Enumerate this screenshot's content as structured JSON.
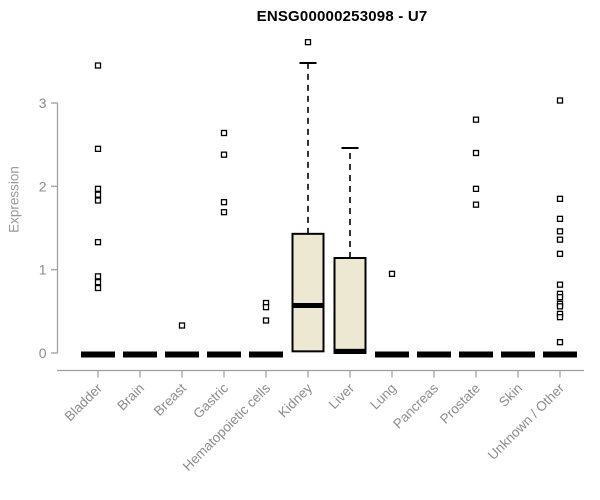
{
  "chart_data": {
    "type": "box",
    "title": "ENSG00000253098 - U7",
    "ylabel": "Expression",
    "xlabel": "",
    "ylim": [
      0,
      3.85
    ],
    "yticks": [
      0,
      1,
      2,
      3
    ],
    "grid": false,
    "legend": null,
    "categories": [
      "Bladder",
      "Brain",
      "Breast",
      "Gastric",
      "Hematopoietic cells",
      "Kidney",
      "Liver",
      "Lung",
      "Pancreas",
      "Prostate",
      "Skin",
      "Unknown / Other"
    ],
    "boxes": [
      {
        "category": "Bladder",
        "q1": 0,
        "median": 0,
        "q3": 0,
        "whisker_low": 0,
        "whisker_high": 0,
        "outliers": [
          3.45,
          2.45,
          1.97,
          1.9,
          1.83,
          1.33,
          0.92,
          0.85,
          0.78
        ]
      },
      {
        "category": "Brain",
        "q1": 0,
        "median": 0,
        "q3": 0,
        "whisker_low": 0,
        "whisker_high": 0,
        "outliers": []
      },
      {
        "category": "Breast",
        "q1": 0,
        "median": 0,
        "q3": 0,
        "whisker_low": 0,
        "whisker_high": 0,
        "outliers": [
          0.33
        ]
      },
      {
        "category": "Gastric",
        "q1": 0,
        "median": 0,
        "q3": 0,
        "whisker_low": 0,
        "whisker_high": 0,
        "outliers": [
          2.64,
          2.38,
          1.81,
          1.69
        ]
      },
      {
        "category": "Hematopoietic cells",
        "q1": 0,
        "median": 0,
        "q3": 0,
        "whisker_low": 0,
        "whisker_high": 0,
        "outliers": [
          0.6,
          0.55,
          0.39
        ]
      },
      {
        "category": "Kidney",
        "q1": 0.02,
        "median": 0.57,
        "q3": 1.43,
        "whisker_low": 0,
        "whisker_high": 3.48,
        "outliers": [
          3.73
        ]
      },
      {
        "category": "Liver",
        "q1": 0,
        "median": 0.02,
        "q3": 1.14,
        "whisker_low": 0,
        "whisker_high": 2.46,
        "outliers": []
      },
      {
        "category": "Lung",
        "q1": 0,
        "median": 0,
        "q3": 0,
        "whisker_low": 0,
        "whisker_high": 0,
        "outliers": [
          0.95
        ]
      },
      {
        "category": "Pancreas",
        "q1": 0,
        "median": 0,
        "q3": 0,
        "whisker_low": 0,
        "whisker_high": 0,
        "outliers": []
      },
      {
        "category": "Prostate",
        "q1": 0,
        "median": 0,
        "q3": 0,
        "whisker_low": 0,
        "whisker_high": 0,
        "outliers": [
          2.8,
          2.4,
          1.97,
          1.78
        ]
      },
      {
        "category": "Skin",
        "q1": 0,
        "median": 0,
        "q3": 0,
        "whisker_low": 0,
        "whisker_high": 0,
        "outliers": []
      },
      {
        "category": "Unknown / Other",
        "q1": 0,
        "median": 0,
        "q3": 0,
        "whisker_low": 0,
        "whisker_high": 0,
        "outliers": [
          3.03,
          1.85,
          1.61,
          1.46,
          1.36,
          1.19,
          0.82,
          0.71,
          0.67,
          0.59,
          0.56,
          0.47,
          0.43,
          0.13
        ]
      }
    ],
    "style": {
      "box_fill": "#ece8d2",
      "box_border": "#000000",
      "median_color": "#000000",
      "axis_color": "#a0a0a0",
      "tick_label_color": "#8c8c8c",
      "title_color": "#000000",
      "outlier_marker": "open-square",
      "whisker_style": "dashed"
    }
  }
}
